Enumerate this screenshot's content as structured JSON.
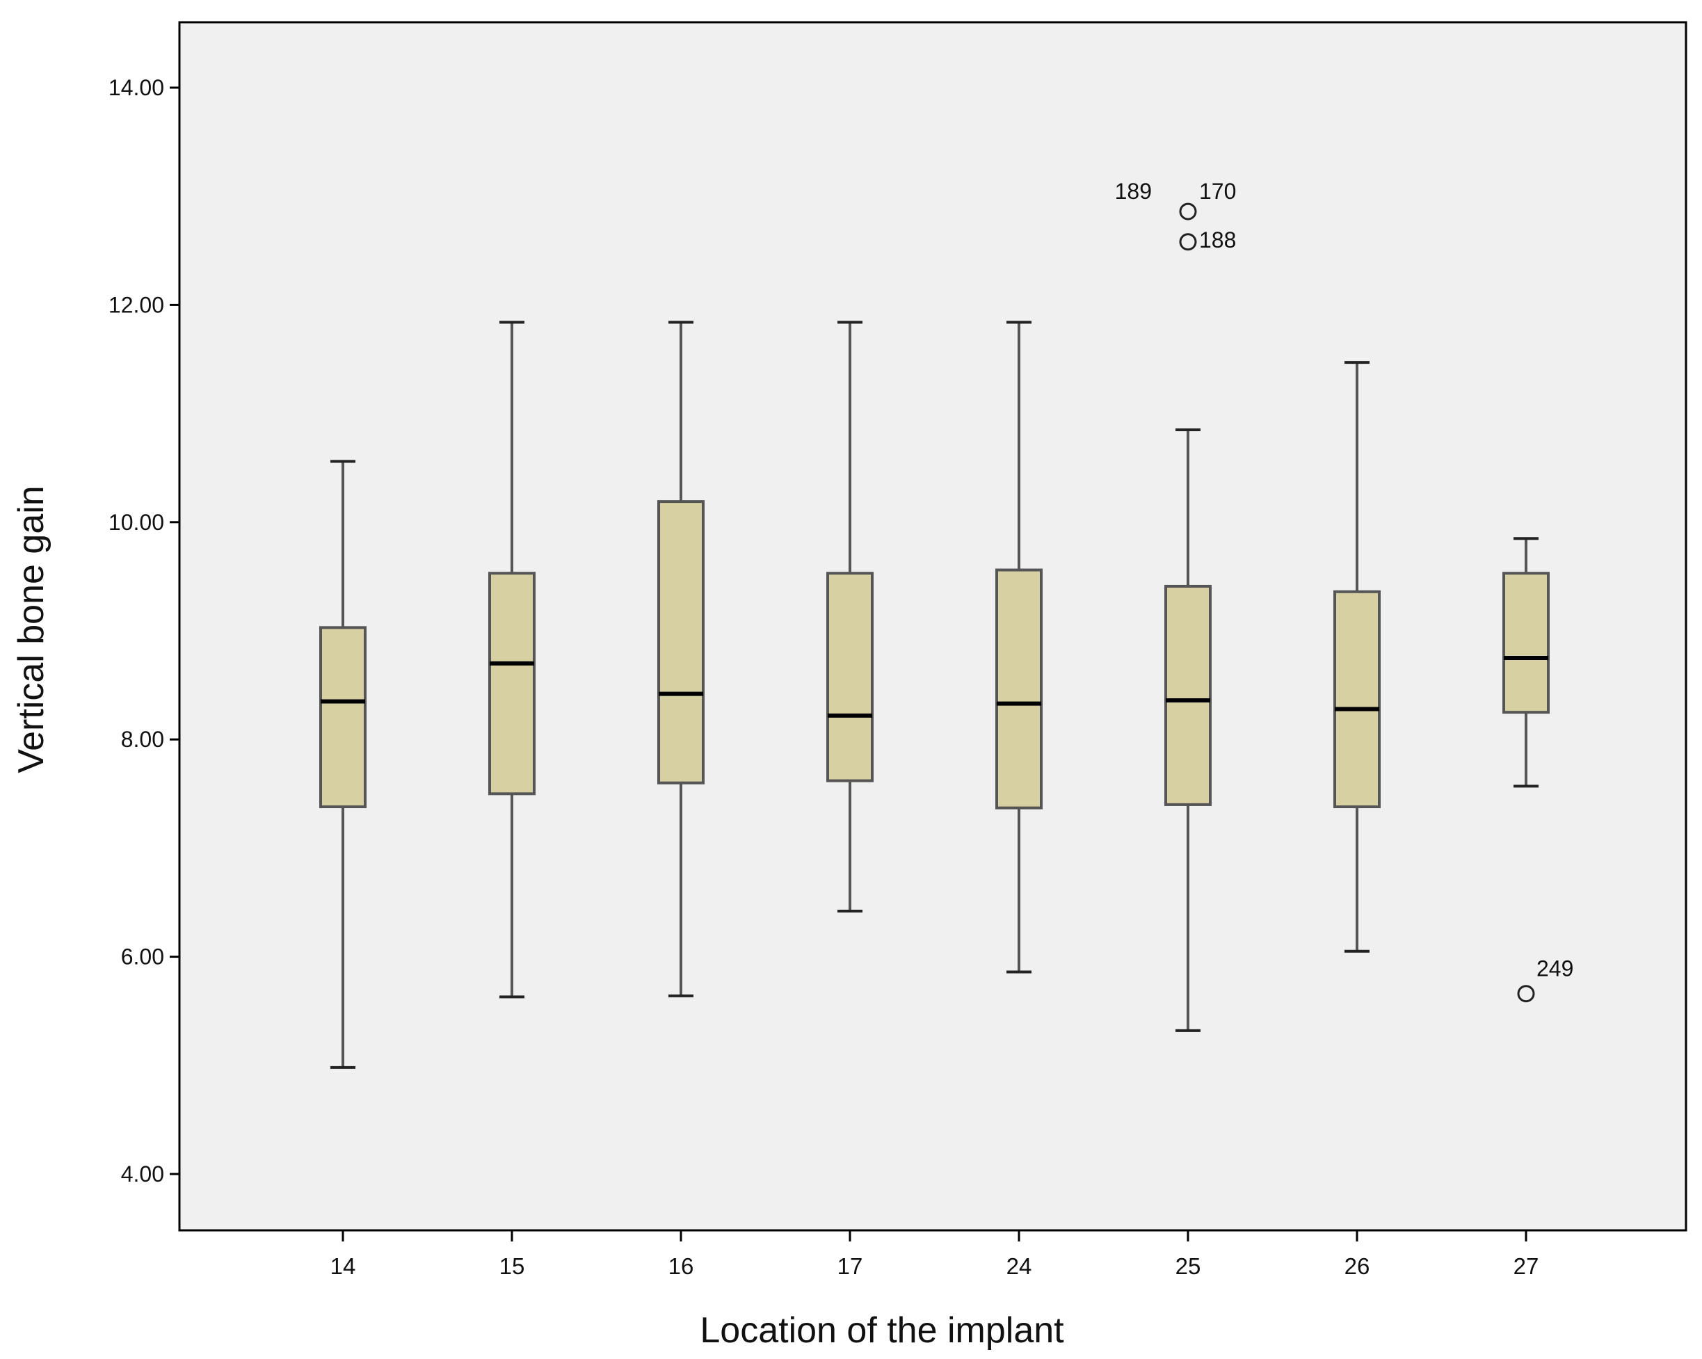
{
  "chart_data": {
    "type": "boxplot",
    "title": "",
    "xlabel": "Location of the implant",
    "ylabel": "Vertical bone gain",
    "ylim": [
      3.0,
      14.6
    ],
    "yticks": [
      "4.00",
      "6.00",
      "8.00",
      "10.00",
      "12.00",
      "14.00"
    ],
    "ytick_values": [
      4,
      6,
      8,
      10,
      12,
      14
    ],
    "grid": false,
    "colors": {
      "plot_bg": "#f0f0f0",
      "box_fill": "#d6d0a2",
      "box_stroke": "#555555",
      "median": "#000000",
      "whisker": "#555555",
      "frame": "#000000"
    },
    "categories": [
      "14",
      "15",
      "16",
      "17",
      "24",
      "25",
      "26",
      "27"
    ],
    "boxes": [
      {
        "category": "14",
        "whisker_low": 4.98,
        "q1": 7.38,
        "median": 8.35,
        "q3": 9.03,
        "whisker_high": 10.56
      },
      {
        "category": "15",
        "whisker_low": 5.63,
        "q1": 7.5,
        "median": 8.7,
        "q3": 9.53,
        "whisker_high": 11.84
      },
      {
        "category": "16",
        "whisker_low": 5.64,
        "q1": 7.6,
        "median": 8.42,
        "q3": 10.19,
        "whisker_high": 11.84
      },
      {
        "category": "17",
        "whisker_low": 6.42,
        "q1": 7.62,
        "median": 8.22,
        "q3": 9.53,
        "whisker_high": 11.84
      },
      {
        "category": "24",
        "whisker_low": 5.86,
        "q1": 7.37,
        "median": 8.33,
        "q3": 9.56,
        "whisker_high": 11.84
      },
      {
        "category": "25",
        "whisker_low": 5.32,
        "q1": 7.4,
        "median": 8.36,
        "q3": 9.41,
        "whisker_high": 10.85
      },
      {
        "category": "26",
        "whisker_low": 6.05,
        "q1": 7.38,
        "median": 8.28,
        "q3": 9.36,
        "whisker_high": 11.47
      },
      {
        "category": "27",
        "whisker_low": 7.57,
        "q1": 8.25,
        "median": 8.75,
        "q3": 9.53,
        "whisker_high": 9.85
      }
    ],
    "outliers": [
      {
        "category": "25",
        "value": 12.86,
        "label": "189"
      },
      {
        "category": "25",
        "value": 12.86,
        "label": "170"
      },
      {
        "category": "25",
        "value": 12.58,
        "label": "188"
      },
      {
        "category": "27",
        "value": 5.66,
        "label": "249"
      }
    ]
  }
}
